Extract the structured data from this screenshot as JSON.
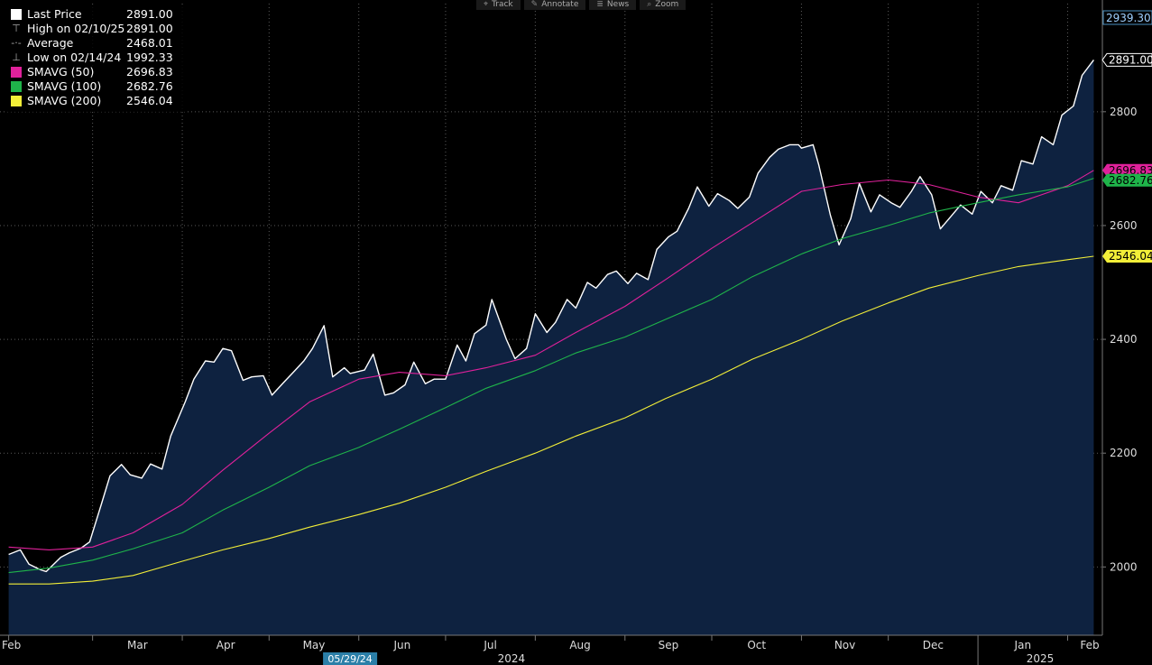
{
  "toolbar": {
    "items": [
      {
        "icon": "crosshair-icon",
        "glyph": "⌖",
        "label": "Track"
      },
      {
        "icon": "pencil-icon",
        "glyph": "✎",
        "label": "Annotate"
      },
      {
        "icon": "news-icon",
        "glyph": "≣",
        "label": "News"
      },
      {
        "icon": "zoom-icon",
        "glyph": "⌕",
        "label": "Zoom"
      }
    ]
  },
  "legend": {
    "rows": [
      {
        "kind": "swatch",
        "color": "#ffffff",
        "label": "Last Price",
        "value": "2891.00"
      },
      {
        "kind": "glyph",
        "glyph": "⊤",
        "label": "High on 02/10/25",
        "value": "2891.00"
      },
      {
        "kind": "glyph",
        "glyph": "-·-",
        "label": "Average",
        "value": "2468.01"
      },
      {
        "kind": "glyph",
        "glyph": "⊥",
        "label": "Low on 02/14/24",
        "value": "1992.33"
      },
      {
        "kind": "swatch",
        "color": "#e0219b",
        "label": "SMAVG (50)",
        "value": "2696.83"
      },
      {
        "kind": "swatch",
        "color": "#1fb44a",
        "label": "SMAVG (100)",
        "value": "2682.76"
      },
      {
        "kind": "swatch",
        "color": "#f2ee38",
        "label": "SMAVG (200)",
        "value": "2546.04"
      }
    ]
  },
  "chart_data": {
    "type": "line",
    "xaxis": {
      "months": [
        "Feb",
        "Mar",
        "Apr",
        "May",
        "Jun",
        "Jul",
        "Aug",
        "Sep",
        "Oct",
        "Nov",
        "Dec",
        "Jan",
        "Feb"
      ],
      "years": [
        "2024",
        "2025"
      ],
      "highlighted_date": "05/29/24"
    },
    "yaxis": {
      "ticks": [
        2000,
        2200,
        2400,
        2600,
        2800
      ],
      "range": [
        1880,
        2990
      ],
      "top_label": "2939.30",
      "side": "right",
      "grid": true
    },
    "series": [
      {
        "name": "Last Price",
        "color": "#ffffff",
        "fill": "#0e2240",
        "end_label": "2891.00",
        "points": [
          [
            "2024-02-01",
            2022
          ],
          [
            "2024-02-05",
            2030
          ],
          [
            "2024-02-08",
            2005
          ],
          [
            "2024-02-12",
            1995
          ],
          [
            "2024-02-14",
            1992
          ],
          [
            "2024-02-19",
            2017
          ],
          [
            "2024-02-22",
            2025
          ],
          [
            "2024-02-26",
            2033
          ],
          [
            "2024-02-29",
            2044
          ],
          [
            "2024-03-04",
            2110
          ],
          [
            "2024-03-07",
            2160
          ],
          [
            "2024-03-11",
            2180
          ],
          [
            "2024-03-14",
            2162
          ],
          [
            "2024-03-18",
            2156
          ],
          [
            "2024-03-21",
            2181
          ],
          [
            "2024-03-25",
            2172
          ],
          [
            "2024-03-28",
            2230
          ],
          [
            "2024-04-02",
            2290
          ],
          [
            "2024-04-05",
            2330
          ],
          [
            "2024-04-09",
            2362
          ],
          [
            "2024-04-12",
            2360
          ],
          [
            "2024-04-15",
            2384
          ],
          [
            "2024-04-18",
            2380
          ],
          [
            "2024-04-22",
            2328
          ],
          [
            "2024-04-25",
            2334
          ],
          [
            "2024-04-29",
            2336
          ],
          [
            "2024-05-02",
            2302
          ],
          [
            "2024-05-06",
            2324
          ],
          [
            "2024-05-09",
            2340
          ],
          [
            "2024-05-13",
            2362
          ],
          [
            "2024-05-16",
            2384
          ],
          [
            "2024-05-20",
            2424
          ],
          [
            "2024-05-23",
            2334
          ],
          [
            "2024-05-27",
            2350
          ],
          [
            "2024-05-29",
            2340
          ],
          [
            "2024-06-03",
            2346
          ],
          [
            "2024-06-06",
            2374
          ],
          [
            "2024-06-10",
            2302
          ],
          [
            "2024-06-13",
            2306
          ],
          [
            "2024-06-17",
            2320
          ],
          [
            "2024-06-20",
            2360
          ],
          [
            "2024-06-24",
            2322
          ],
          [
            "2024-06-27",
            2330
          ],
          [
            "2024-07-01",
            2330
          ],
          [
            "2024-07-05",
            2390
          ],
          [
            "2024-07-08",
            2362
          ],
          [
            "2024-07-11",
            2410
          ],
          [
            "2024-07-15",
            2425
          ],
          [
            "2024-07-17",
            2470
          ],
          [
            "2024-07-22",
            2400
          ],
          [
            "2024-07-25",
            2366
          ],
          [
            "2024-07-29",
            2384
          ],
          [
            "2024-08-01",
            2445
          ],
          [
            "2024-08-05",
            2412
          ],
          [
            "2024-08-08",
            2430
          ],
          [
            "2024-08-12",
            2470
          ],
          [
            "2024-08-15",
            2455
          ],
          [
            "2024-08-19",
            2500
          ],
          [
            "2024-08-22",
            2490
          ],
          [
            "2024-08-26",
            2514
          ],
          [
            "2024-08-29",
            2520
          ],
          [
            "2024-09-02",
            2498
          ],
          [
            "2024-09-05",
            2516
          ],
          [
            "2024-09-09",
            2505
          ],
          [
            "2024-09-12",
            2558
          ],
          [
            "2024-09-16",
            2580
          ],
          [
            "2024-09-19",
            2590
          ],
          [
            "2024-09-23",
            2630
          ],
          [
            "2024-09-26",
            2668
          ],
          [
            "2024-09-30",
            2634
          ],
          [
            "2024-10-03",
            2656
          ],
          [
            "2024-10-07",
            2644
          ],
          [
            "2024-10-10",
            2630
          ],
          [
            "2024-10-14",
            2650
          ],
          [
            "2024-10-17",
            2692
          ],
          [
            "2024-10-21",
            2720
          ],
          [
            "2024-10-24",
            2734
          ],
          [
            "2024-10-28",
            2742
          ],
          [
            "2024-10-31",
            2742
          ],
          [
            "2024-11-01",
            2736
          ],
          [
            "2024-11-05",
            2742
          ],
          [
            "2024-11-07",
            2706
          ],
          [
            "2024-11-11",
            2618
          ],
          [
            "2024-11-14",
            2566
          ],
          [
            "2024-11-18",
            2612
          ],
          [
            "2024-11-21",
            2674
          ],
          [
            "2024-11-25",
            2624
          ],
          [
            "2024-11-28",
            2654
          ],
          [
            "2024-12-02",
            2640
          ],
          [
            "2024-12-05",
            2632
          ],
          [
            "2024-12-09",
            2660
          ],
          [
            "2024-12-12",
            2686
          ],
          [
            "2024-12-16",
            2654
          ],
          [
            "2024-12-19",
            2594
          ],
          [
            "2024-12-23",
            2618
          ],
          [
            "2024-12-26",
            2636
          ],
          [
            "2024-12-30",
            2620
          ],
          [
            "2025-01-02",
            2660
          ],
          [
            "2025-01-06",
            2640
          ],
          [
            "2025-01-09",
            2670
          ],
          [
            "2025-01-13",
            2662
          ],
          [
            "2025-01-16",
            2714
          ],
          [
            "2025-01-20",
            2708
          ],
          [
            "2025-01-23",
            2756
          ],
          [
            "2025-01-27",
            2742
          ],
          [
            "2025-01-30",
            2794
          ],
          [
            "2025-02-03",
            2810
          ],
          [
            "2025-02-06",
            2864
          ],
          [
            "2025-02-10",
            2891
          ]
        ]
      },
      {
        "name": "SMAVG (50)",
        "color": "#e0219b",
        "end_label": "2696.83",
        "points": [
          [
            "2024-02-01",
            2035
          ],
          [
            "2024-02-15",
            2030
          ],
          [
            "2024-03-01",
            2035
          ],
          [
            "2024-03-15",
            2060
          ],
          [
            "2024-04-01",
            2110
          ],
          [
            "2024-04-15",
            2170
          ],
          [
            "2024-05-01",
            2235
          ],
          [
            "2024-05-15",
            2290
          ],
          [
            "2024-06-01",
            2330
          ],
          [
            "2024-06-15",
            2342
          ],
          [
            "2024-07-01",
            2336
          ],
          [
            "2024-07-15",
            2350
          ],
          [
            "2024-08-01",
            2372
          ],
          [
            "2024-08-15",
            2412
          ],
          [
            "2024-09-01",
            2458
          ],
          [
            "2024-09-15",
            2505
          ],
          [
            "2024-10-01",
            2560
          ],
          [
            "2024-10-15",
            2605
          ],
          [
            "2024-11-01",
            2660
          ],
          [
            "2024-11-15",
            2672
          ],
          [
            "2024-12-01",
            2680
          ],
          [
            "2024-12-15",
            2672
          ],
          [
            "2025-01-01",
            2650
          ],
          [
            "2025-01-15",
            2640
          ],
          [
            "2025-02-01",
            2670
          ],
          [
            "2025-02-10",
            2697
          ]
        ]
      },
      {
        "name": "SMAVG (100)",
        "color": "#1fb44a",
        "end_label": "2682.76",
        "points": [
          [
            "2024-02-01",
            1990
          ],
          [
            "2024-02-15",
            1998
          ],
          [
            "2024-03-01",
            2012
          ],
          [
            "2024-03-15",
            2032
          ],
          [
            "2024-04-01",
            2060
          ],
          [
            "2024-04-15",
            2100
          ],
          [
            "2024-05-01",
            2140
          ],
          [
            "2024-05-15",
            2178
          ],
          [
            "2024-06-01",
            2210
          ],
          [
            "2024-06-15",
            2242
          ],
          [
            "2024-07-01",
            2280
          ],
          [
            "2024-07-15",
            2314
          ],
          [
            "2024-08-01",
            2345
          ],
          [
            "2024-08-15",
            2376
          ],
          [
            "2024-09-01",
            2404
          ],
          [
            "2024-09-15",
            2435
          ],
          [
            "2024-10-01",
            2470
          ],
          [
            "2024-10-15",
            2510
          ],
          [
            "2024-11-01",
            2550
          ],
          [
            "2024-11-15",
            2577
          ],
          [
            "2024-12-01",
            2600
          ],
          [
            "2024-12-15",
            2622
          ],
          [
            "2025-01-01",
            2640
          ],
          [
            "2025-01-15",
            2654
          ],
          [
            "2025-02-01",
            2668
          ],
          [
            "2025-02-10",
            2683
          ]
        ]
      },
      {
        "name": "SMAVG (200)",
        "color": "#f2ee38",
        "end_label": "2546.04",
        "points": [
          [
            "2024-02-01",
            1970
          ],
          [
            "2024-02-15",
            1970
          ],
          [
            "2024-03-01",
            1975
          ],
          [
            "2024-03-15",
            1985
          ],
          [
            "2024-04-01",
            2010
          ],
          [
            "2024-04-15",
            2030
          ],
          [
            "2024-05-01",
            2050
          ],
          [
            "2024-05-15",
            2070
          ],
          [
            "2024-06-01",
            2092
          ],
          [
            "2024-06-15",
            2112
          ],
          [
            "2024-07-01",
            2140
          ],
          [
            "2024-07-15",
            2168
          ],
          [
            "2024-08-01",
            2200
          ],
          [
            "2024-08-15",
            2230
          ],
          [
            "2024-09-01",
            2262
          ],
          [
            "2024-09-15",
            2296
          ],
          [
            "2024-10-01",
            2330
          ],
          [
            "2024-10-15",
            2365
          ],
          [
            "2024-11-01",
            2400
          ],
          [
            "2024-11-15",
            2432
          ],
          [
            "2024-12-01",
            2464
          ],
          [
            "2024-12-15",
            2490
          ],
          [
            "2025-01-01",
            2512
          ],
          [
            "2025-01-15",
            2528
          ],
          [
            "2025-02-01",
            2540
          ],
          [
            "2025-02-10",
            2546
          ]
        ]
      }
    ]
  }
}
